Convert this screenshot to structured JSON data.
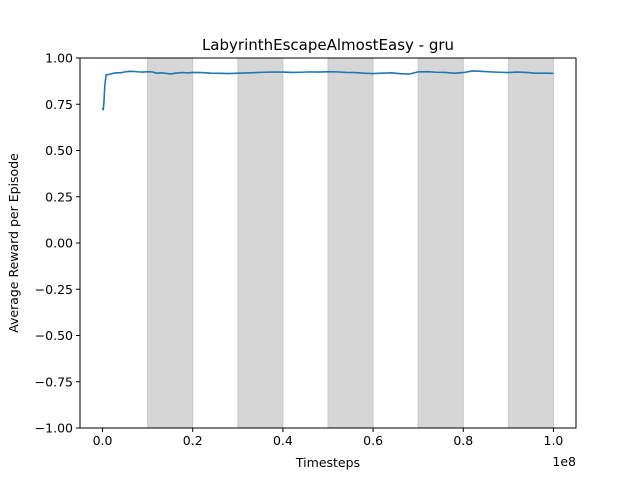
{
  "chart_data": {
    "type": "line",
    "title": "LabyrinthEscapeAlmostEasy - gru",
    "xlabel": "Timesteps",
    "ylabel": "Average Reward per Episode",
    "x_scale_label": "1e8",
    "xlim": [
      -5000000,
      105000000
    ],
    "ylim": [
      -1.0,
      1.0
    ],
    "x_ticks": [
      0,
      20000000,
      40000000,
      60000000,
      80000000,
      100000000
    ],
    "x_tick_labels": [
      "0.0",
      "0.2",
      "0.4",
      "0.6",
      "0.8",
      "1.0"
    ],
    "y_ticks": [
      -1.0,
      -0.75,
      -0.5,
      -0.25,
      0.0,
      0.25,
      0.5,
      0.75,
      1.0
    ],
    "y_tick_labels": [
      "−1.00",
      "−0.75",
      "−0.50",
      "−0.25",
      "0.00",
      "0.25",
      "0.50",
      "0.75",
      "1.00"
    ],
    "grid": false,
    "shaded_regions": [
      [
        10000000,
        20000000
      ],
      [
        30000000,
        40000000
      ],
      [
        50000000,
        60000000
      ],
      [
        70000000,
        80000000
      ],
      [
        90000000,
        100000000
      ]
    ],
    "series": [
      {
        "x": [
          0,
          150000,
          300000,
          500000,
          800000,
          1200000,
          2000000,
          3000000,
          4000000,
          5000000,
          6000000,
          7000000,
          8000000,
          9000000,
          10000000,
          11000000,
          12000000,
          13000000,
          14000000,
          15000000,
          16000000,
          17000000,
          18000000,
          19000000,
          20000000,
          22000000,
          24000000,
          26000000,
          28000000,
          30000000,
          32000000,
          34000000,
          36000000,
          38000000,
          40000000,
          42000000,
          44000000,
          46000000,
          48000000,
          50000000,
          52000000,
          54000000,
          56000000,
          58000000,
          60000000,
          62000000,
          64000000,
          66000000,
          68000000,
          70000000,
          72000000,
          74000000,
          76000000,
          78000000,
          80000000,
          82000000,
          84000000,
          86000000,
          88000000,
          90000000,
          92000000,
          94000000,
          96000000,
          98000000,
          100000000
        ],
        "y": [
          0.73,
          0.72,
          0.76,
          0.85,
          0.91,
          0.91,
          0.915,
          0.92,
          0.92,
          0.925,
          0.928,
          0.927,
          0.925,
          0.924,
          0.926,
          0.925,
          0.918,
          0.92,
          0.917,
          0.914,
          0.917,
          0.92,
          0.921,
          0.919,
          0.922,
          0.921,
          0.918,
          0.917,
          0.916,
          0.918,
          0.919,
          0.921,
          0.923,
          0.924,
          0.924,
          0.922,
          0.923,
          0.925,
          0.924,
          0.926,
          0.925,
          0.922,
          0.921,
          0.918,
          0.916,
          0.918,
          0.92,
          0.915,
          0.913,
          0.925,
          0.926,
          0.923,
          0.922,
          0.918,
          0.921,
          0.93,
          0.928,
          0.925,
          0.923,
          0.921,
          0.924,
          0.922,
          0.918,
          0.918,
          0.917
        ]
      }
    ],
    "colors": {
      "line": "#1f77b4",
      "shade": "#d6d6d6",
      "shade_edge": "#c8c8c8",
      "axes": "#000000"
    }
  }
}
